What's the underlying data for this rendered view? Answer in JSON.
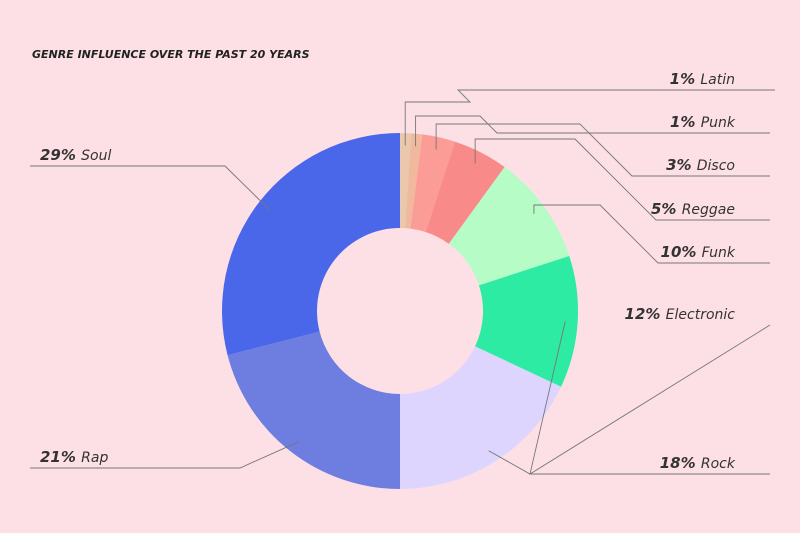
{
  "chart_data": {
    "type": "pie",
    "title": "GENRE INFLUENCE OVER THE PAST 20 YEARS",
    "unit": "%",
    "slices": [
      {
        "label": "Latin",
        "value": 1,
        "color": "#e9c8ad"
      },
      {
        "label": "Punk",
        "value": 1,
        "color": "#f0b89c"
      },
      {
        "label": "Disco",
        "value": 3,
        "color": "#fb9d96"
      },
      {
        "label": "Reggae",
        "value": 5,
        "color": "#f88a8a"
      },
      {
        "label": "Funk",
        "value": 10,
        "color": "#b5fcc7"
      },
      {
        "label": "Electronic",
        "value": 12,
        "color": "#2eeba3"
      },
      {
        "label": "Rock",
        "value": 18,
        "color": "#ddd5fd"
      },
      {
        "label": "Rap",
        "value": 21,
        "color": "#6e7ee0"
      },
      {
        "label": "Soul",
        "value": 29,
        "color": "#4a67ea"
      }
    ],
    "legend": "none"
  }
}
